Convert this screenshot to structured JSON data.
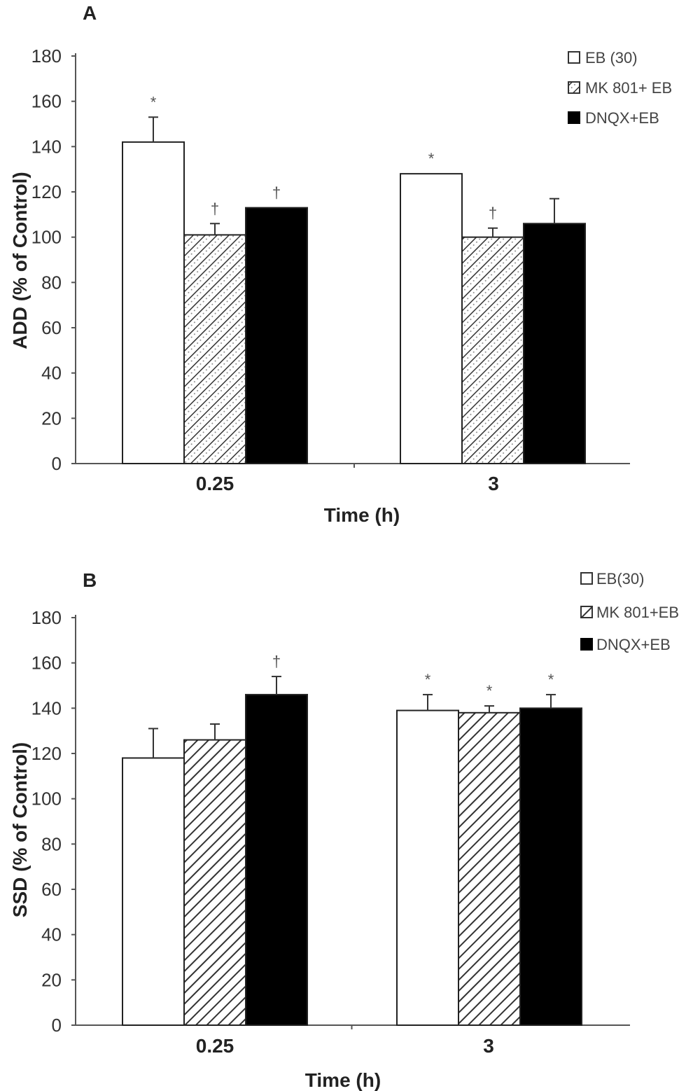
{
  "chart_data": [
    {
      "type": "bar",
      "panel_label": "A",
      "xlabel": "Time (h)",
      "ylabel": "ADD (% of Control)",
      "ylim": [
        0,
        180
      ],
      "yticks": [
        0,
        20,
        40,
        60,
        80,
        100,
        120,
        140,
        160,
        180
      ],
      "categories": [
        "0.25",
        "3"
      ],
      "legend_position": "top-right",
      "series": [
        {
          "name": "EB (30)",
          "pattern": "white",
          "values": [
            142,
            128
          ],
          "errors": [
            11,
            0
          ],
          "markers": [
            "*",
            "*"
          ]
        },
        {
          "name": "MK 801+ EB",
          "pattern": "hatch-dotted",
          "values": [
            101,
            100
          ],
          "errors": [
            5,
            4
          ],
          "markers": [
            "†",
            "†"
          ]
        },
        {
          "name": "DNQX+EB",
          "pattern": "black",
          "values": [
            113,
            106
          ],
          "errors": [
            0,
            11
          ],
          "markers": [
            "†",
            ""
          ]
        }
      ]
    },
    {
      "type": "bar",
      "panel_label": "B",
      "xlabel": "Time (h)",
      "ylabel": "SSD (% of Control)",
      "ylim": [
        0,
        180
      ],
      "yticks": [
        0,
        20,
        40,
        60,
        80,
        100,
        120,
        140,
        160,
        180
      ],
      "categories": [
        "0.25",
        "3"
      ],
      "legend_position": "top-right",
      "series": [
        {
          "name": "EB(30)",
          "pattern": "white",
          "values": [
            118,
            139
          ],
          "errors": [
            13,
            7
          ],
          "markers": [
            "",
            "*"
          ]
        },
        {
          "name": "MK 801+EB",
          "pattern": "hatch",
          "values": [
            126,
            138
          ],
          "errors": [
            7,
            3
          ],
          "markers": [
            "",
            "*"
          ]
        },
        {
          "name": "DNQX+EB",
          "pattern": "black",
          "values": [
            146,
            140
          ],
          "errors": [
            8,
            6
          ],
          "markers": [
            "†",
            "*"
          ]
        }
      ]
    }
  ],
  "colors": {
    "axis": "#555555",
    "black_bar": "#000000",
    "white_bar": "#ffffff",
    "hatch": "#333333"
  }
}
